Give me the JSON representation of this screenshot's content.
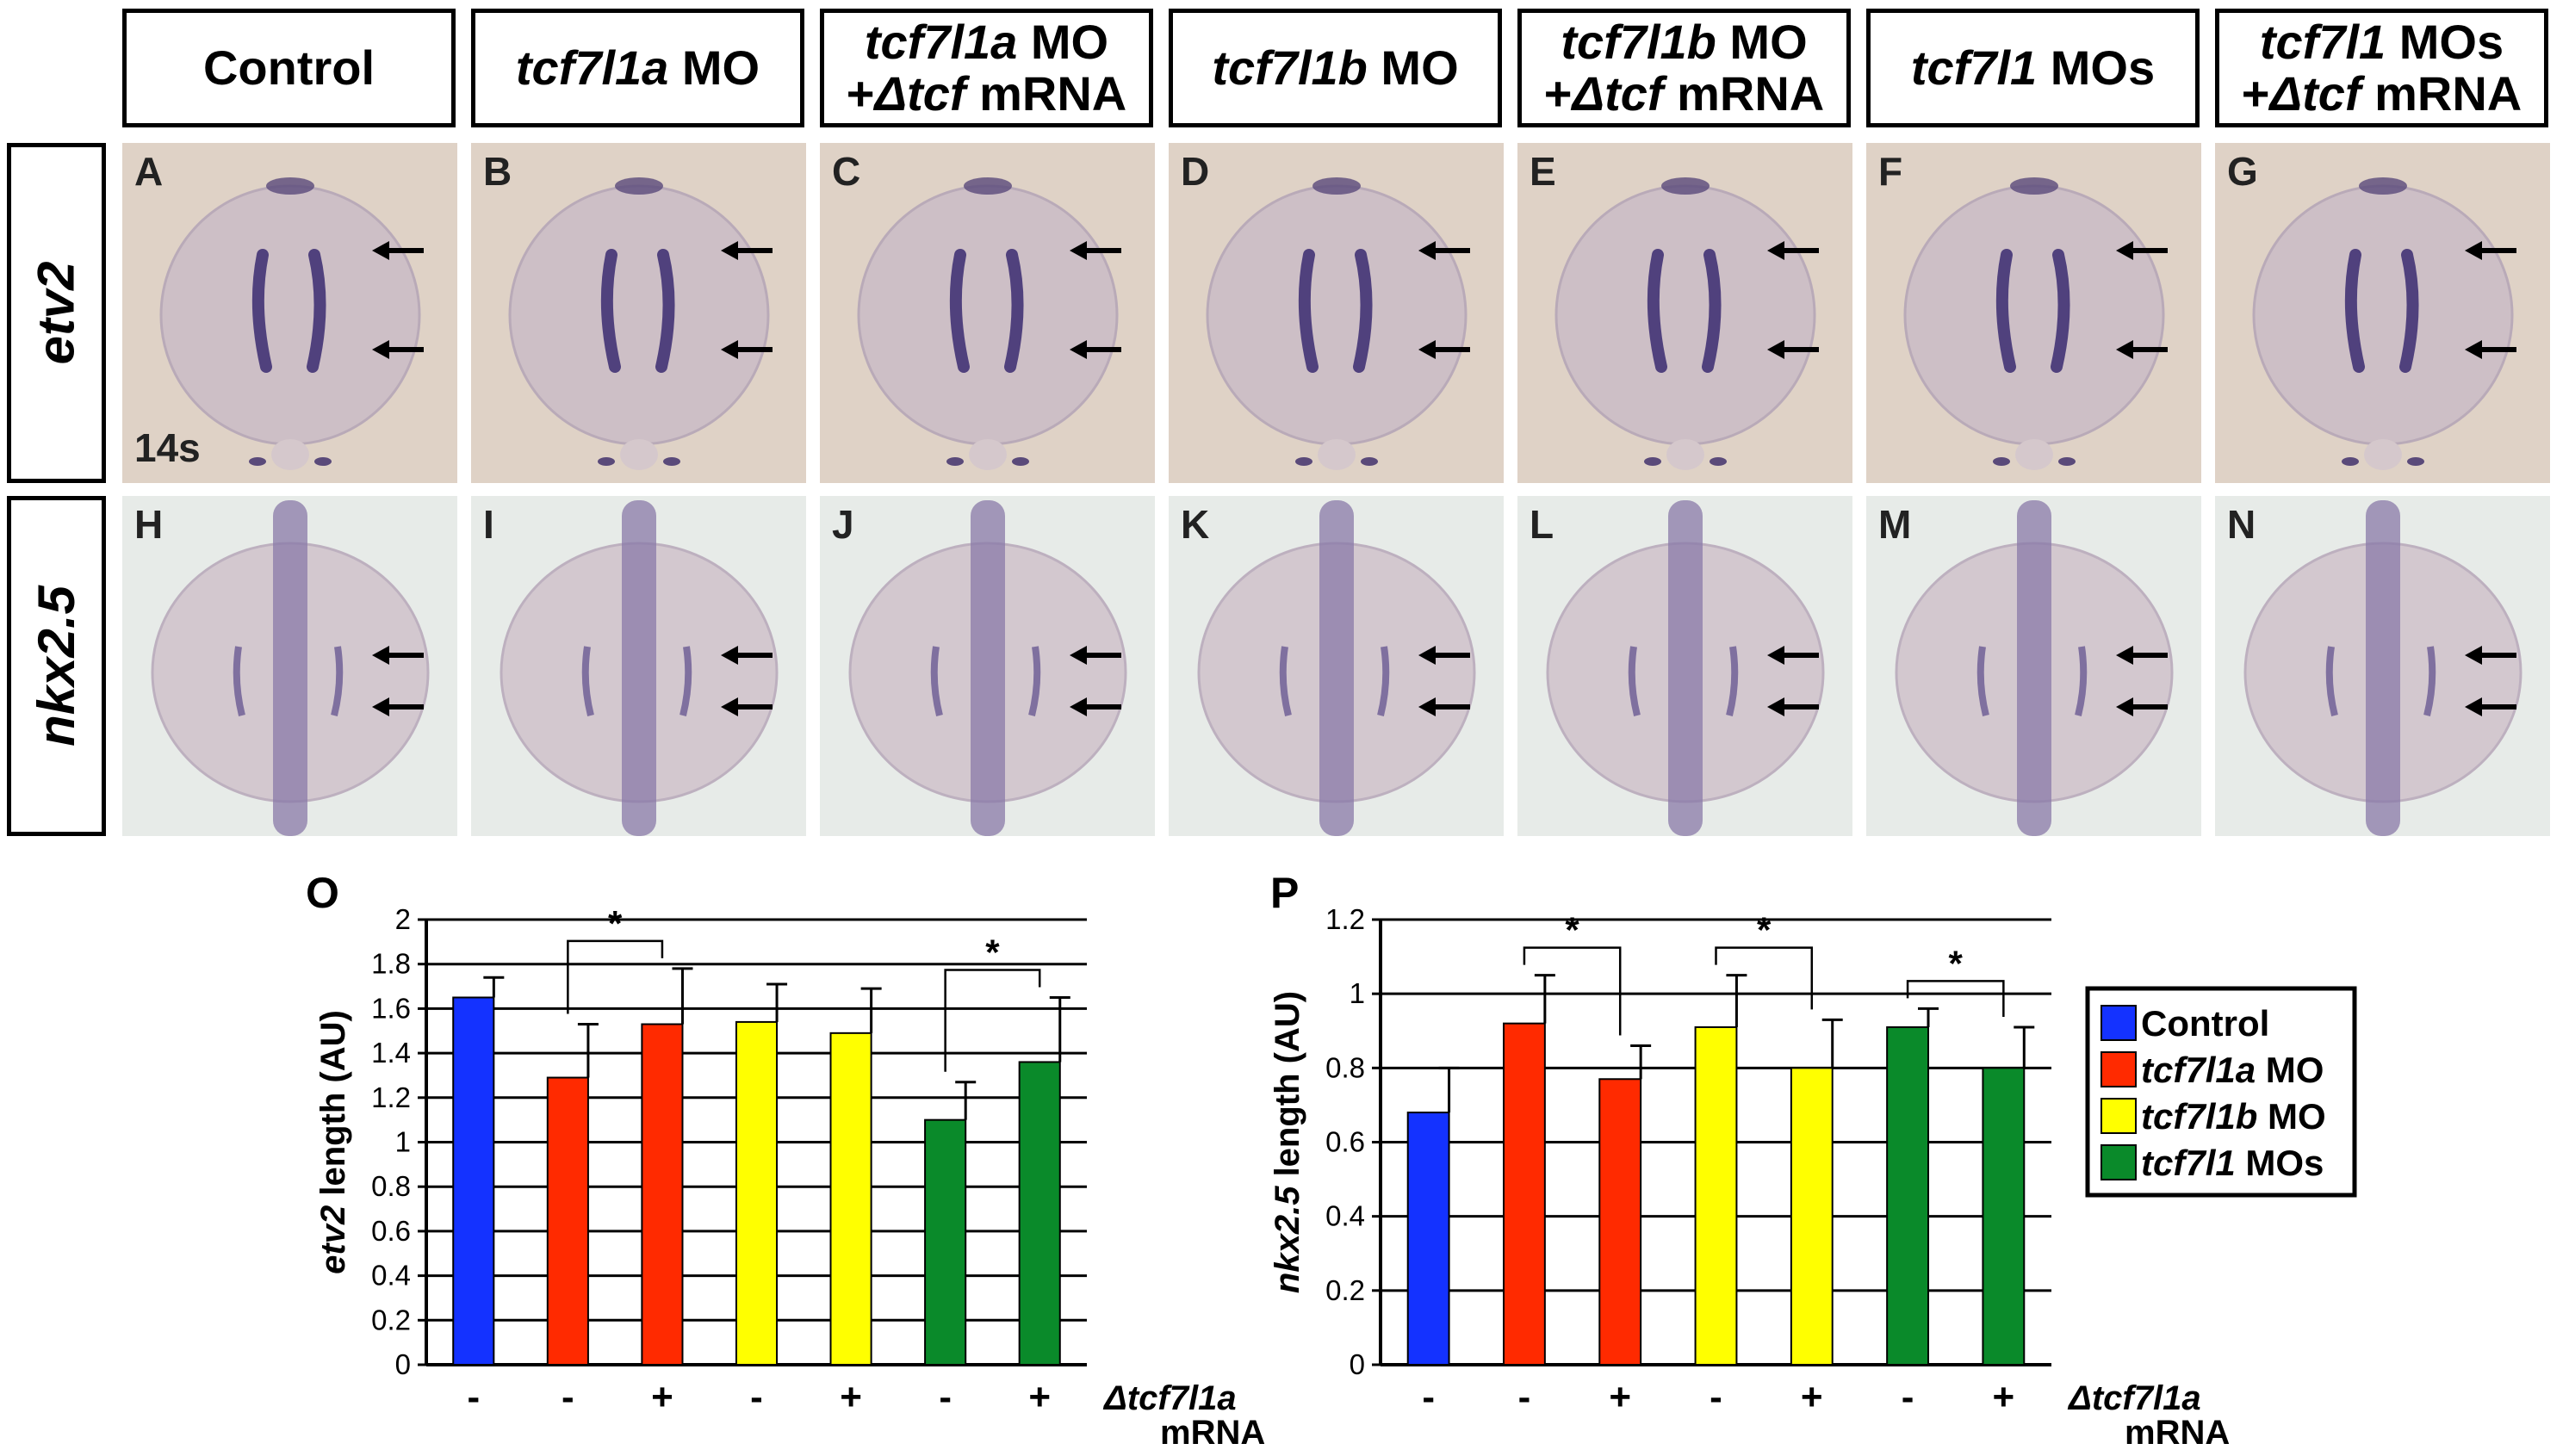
{
  "columns": [
    {
      "italic": "",
      "plain": "Control",
      "line2_prefix": "",
      "line2_italic": "",
      "line2_plain": ""
    },
    {
      "italic": "tcf7l1a",
      "plain": " MO",
      "line2_prefix": "",
      "line2_italic": "",
      "line2_plain": ""
    },
    {
      "italic": "tcf7l1a",
      "plain": " MO",
      "line2_prefix": "+",
      "line2_italic": "Δtcf",
      "line2_plain": " mRNA"
    },
    {
      "italic": "tcf7l1b",
      "plain": " MO",
      "line2_prefix": "",
      "line2_italic": "",
      "line2_plain": ""
    },
    {
      "italic": "tcf7l1b",
      "plain": " MO",
      "line2_prefix": "+",
      "line2_italic": "Δtcf",
      "line2_plain": " mRNA"
    },
    {
      "italic": "tcf7l1",
      "plain": " MOs",
      "line2_prefix": "",
      "line2_italic": "",
      "line2_plain": ""
    },
    {
      "italic": "tcf7l1",
      "plain": " MOs",
      "line2_prefix": "+",
      "line2_italic": "Δtcf",
      "line2_plain": " mRNA"
    }
  ],
  "rows": [
    {
      "label": "etv2",
      "panels": [
        "A",
        "B",
        "C",
        "D",
        "E",
        "F",
        "G"
      ],
      "stage": "14s"
    },
    {
      "label": "nkx2.5",
      "panels": [
        "H",
        "I",
        "J",
        "K",
        "L",
        "M",
        "N"
      ],
      "stage": ""
    }
  ],
  "colors": {
    "control": "#1432ff",
    "tcf7l1a": "#ff2a00",
    "tcf7l1b": "#ffff00",
    "tcf7l1": "#0a8a2a",
    "etv2_background": "#dfd2c6",
    "nkx_background": "#e7ebe8",
    "stain": "#3a2a70"
  },
  "legend": [
    {
      "italic": "",
      "plain": "Control",
      "color": "#1432ff"
    },
    {
      "italic": "tcf7l1a",
      "plain": " MO",
      "color": "#ff2a00"
    },
    {
      "italic": "tcf7l1b",
      "plain": " MO",
      "color": "#ffff00"
    },
    {
      "italic": "tcf7l1",
      "plain": " MOs",
      "color": "#0a8a2a"
    }
  ],
  "chart_data": [
    {
      "type": "bar",
      "panel_label": "O",
      "ylabel_italic": "etv2",
      "ylabel_plain": " length (AU)",
      "ylim": [
        0,
        2
      ],
      "yticks": [
        "0",
        "0.2",
        "0.4",
        "0.6",
        "0.8",
        "1",
        "1.2",
        "1.4",
        "1.6",
        "1.8",
        "2"
      ],
      "grid": true,
      "categories": [
        "-",
        "-",
        "+",
        "-",
        "+",
        "-",
        "+"
      ],
      "values": [
        1.65,
        1.29,
        1.53,
        1.54,
        1.49,
        1.1,
        1.36
      ],
      "errors": [
        0.09,
        0.24,
        0.25,
        0.17,
        0.2,
        0.17,
        0.29
      ],
      "bar_groups": [
        "control",
        "tcf7l1a",
        "tcf7l1a",
        "tcf7l1b",
        "tcf7l1b",
        "tcf7l1",
        "tcf7l1"
      ],
      "significance": [
        {
          "from": 1,
          "to": 2,
          "label": "*"
        },
        {
          "from": 5,
          "to": 6,
          "label": "*"
        }
      ],
      "xaxis_label_italic": "Δtcf7l1a",
      "xaxis_label_plain": "mRNA"
    },
    {
      "type": "bar",
      "panel_label": "P",
      "ylabel_italic": "nkx2.5",
      "ylabel_plain": " length (AU)",
      "ylim": [
        0,
        1.2
      ],
      "yticks": [
        "0",
        "0.2",
        "0.4",
        "0.6",
        "0.8",
        "1",
        "1.2"
      ],
      "grid": true,
      "categories": [
        "-",
        "-",
        "+",
        "-",
        "+",
        "-",
        "+"
      ],
      "values": [
        0.68,
        0.92,
        0.77,
        0.91,
        0.8,
        0.91,
        0.8
      ],
      "errors": [
        0.12,
        0.13,
        0.09,
        0.14,
        0.13,
        0.05,
        0.11
      ],
      "bar_groups": [
        "control",
        "tcf7l1a",
        "tcf7l1a",
        "tcf7l1b",
        "tcf7l1b",
        "tcf7l1",
        "tcf7l1"
      ],
      "significance": [
        {
          "from": 1,
          "to": 2,
          "label": "*"
        },
        {
          "from": 3,
          "to": 4,
          "label": "*"
        },
        {
          "from": 5,
          "to": 6,
          "label": "*"
        }
      ],
      "xaxis_label_italic": "Δtcf7l1a",
      "xaxis_label_plain": "mRNA"
    }
  ]
}
